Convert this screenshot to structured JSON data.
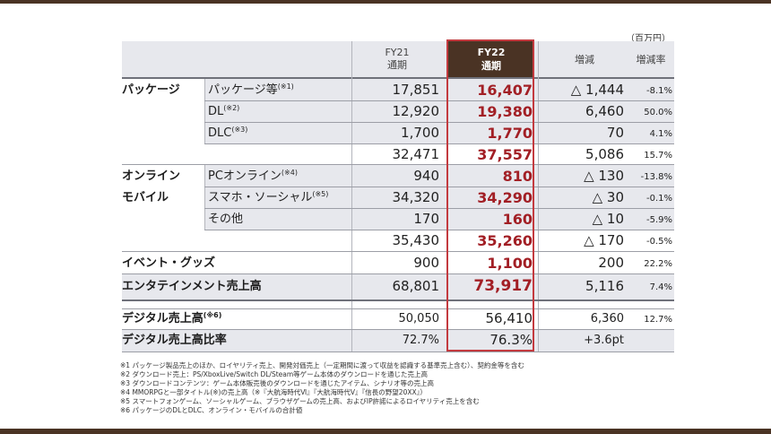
{
  "unit_label": "（百万円）",
  "headers": {
    "fy21_line1": "FY21",
    "fy21_line2": "通期",
    "fy22_line1": "FY22",
    "fy22_line2": "通期",
    "change": "増減",
    "rate": "増減率"
  },
  "categories": {
    "package": "パッケージ",
    "online_1": "オンライン",
    "online_2": "モバイル",
    "event": "イベント・グッズ",
    "entertainment": "エンタテインメント売上高",
    "digital": "デジタル売上高",
    "digital_note": "(※6)",
    "digital_ratio": "デジタル売上高比率"
  },
  "rows": {
    "pkg": {
      "label": "パッケージ等",
      "note": "(※1)",
      "fy21": "17,851",
      "fy22": "16,407",
      "change": "△ 1,444",
      "rate": "-8.1%"
    },
    "dl": {
      "label": "DL",
      "note": "(※2)",
      "fy21": "12,920",
      "fy22": "19,380",
      "change": "6,460",
      "rate": "50.0%"
    },
    "dlc": {
      "label": "DLC",
      "note": "(※3)",
      "fy21": "1,700",
      "fy22": "1,770",
      "change": "70",
      "rate": "4.1%"
    },
    "pkg_total": {
      "fy21": "32,471",
      "fy22": "37,557",
      "change": "5,086",
      "rate": "15.7%"
    },
    "pc": {
      "label": "PCオンライン",
      "note": "(※4)",
      "fy21": "940",
      "fy22": "810",
      "change": "△ 130",
      "rate": "-13.8%"
    },
    "smartphone": {
      "label": "スマホ・ソーシャル",
      "note": "(※5)",
      "fy21": "34,320",
      "fy22": "34,290",
      "change": "△ 30",
      "rate": "-0.1%"
    },
    "other": {
      "label": "その他",
      "fy21": "170",
      "fy22": "160",
      "change": "△ 10",
      "rate": "-5.9%"
    },
    "online_total": {
      "fy21": "35,430",
      "fy22": "35,260",
      "change": "△ 170",
      "rate": "-0.5%"
    },
    "event": {
      "fy21": "900",
      "fy22": "1,100",
      "change": "200",
      "rate": "22.2%"
    },
    "entertainment": {
      "fy21": "68,801",
      "fy22": "73,917",
      "change": "5,116",
      "rate": "7.4%"
    },
    "digital": {
      "fy21": "50,050",
      "fy22": "56,410",
      "change": "6,360",
      "rate": "12.7%"
    },
    "digital_ratio": {
      "fy21": "72.7%",
      "fy22": "76.3%",
      "change": "+3.6pt"
    }
  },
  "footnotes": [
    "※1 パッケージ製品売上のほか、ロイヤリティ売上、開発対価売上（一定期間に渡って収益を認識する基準売上含む）、契約金等を含む",
    "※2 ダウンロード売上：PS/XboxLive/Switch DL/Steam等ゲーム本体のダウンロードを通じた売上高",
    "※3 ダウンロードコンテンツ：ゲーム本体販売後のダウンロードを通じたアイテム、シナリオ等の売上高",
    "※4 MMORPGと一部タイトル(※)の売上高（※『大航海時代Ⅵ』『大航海時代Ⅴ』『信長の野望20XX』）",
    "※5 スマートフォンゲーム、ソーシャルゲーム、ブラウザゲームの売上高、およびIP許諾によるロイヤリティ売上を含む",
    "※6 パッケージのDLとDLC、オンライン・モバイルの合計値"
  ]
}
